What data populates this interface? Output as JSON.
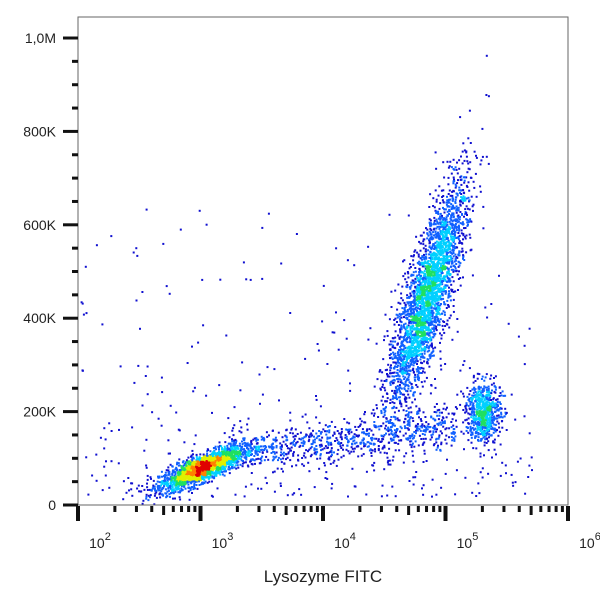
{
  "chart_data": {
    "type": "scatter",
    "subtype": "density-dot-plot",
    "title": "",
    "xlabel": "Lysozyme FITC",
    "ylabel": "",
    "x_scale": "log",
    "xlim": [
      100,
      1000000
    ],
    "ylim": [
      0,
      1045000
    ],
    "x_ticks": [
      {
        "value": 100,
        "base": "10",
        "exp": "2"
      },
      {
        "value": 1000,
        "base": "10",
        "exp": "3"
      },
      {
        "value": 10000,
        "base": "10",
        "exp": "4"
      },
      {
        "value": 100000,
        "base": "10",
        "exp": "5"
      },
      {
        "value": 1000000,
        "base": "10",
        "exp": "6"
      }
    ],
    "y_ticks": [
      {
        "value": 0,
        "label": "0"
      },
      {
        "value": 200000,
        "label": "200K"
      },
      {
        "value": 400000,
        "label": "400K"
      },
      {
        "value": 600000,
        "label": "600K"
      },
      {
        "value": 800000,
        "label": "800K"
      },
      {
        "value": 1000000,
        "label": "1,0M"
      }
    ],
    "grid": false,
    "legend": "none",
    "colormap": [
      "#1010d0",
      "#1060ff",
      "#00d0ff",
      "#20e060",
      "#e0f000",
      "#ff8000",
      "#e00000"
    ],
    "populations": [
      {
        "x_center": 1000,
        "y_center": 80000,
        "count": 2000
      },
      {
        "x_center": 70000,
        "y_center": 450000,
        "count": 3000
      },
      {
        "x_center": 200000,
        "y_center": 200000,
        "count": 700
      },
      {
        "x_range": [
          1600,
          120000
        ],
        "y_range": [
          110000,
          170000
        ],
        "count": 800
      }
    ]
  }
}
